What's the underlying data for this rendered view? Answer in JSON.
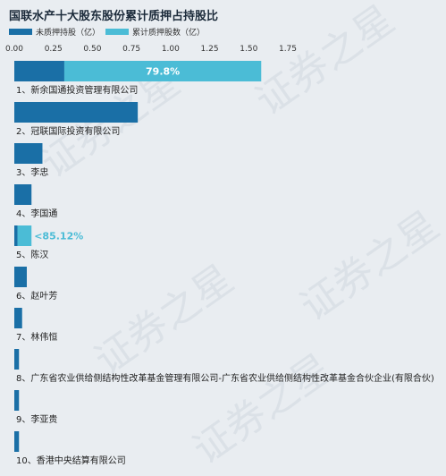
{
  "chart_data": {
    "type": "bar",
    "title": "国联水产十大股东股份累计质押占持股比",
    "legend": [
      {
        "name": "未质押持股（亿）",
        "color": "#1a6fa6"
      },
      {
        "name": "累计质押股数（亿）",
        "color": "#4bbcd6"
      }
    ],
    "x_ticks": [
      "0.00",
      "0.25",
      "0.50",
      "0.75",
      "1.00",
      "1.25",
      "1.50",
      "1.75"
    ],
    "xlim": [
      0,
      1.75
    ],
    "categories": [
      "1、新余国通投资管理有限公司",
      "2、冠联国际投资有限公司",
      "3、李忠",
      "4、李国通",
      "5、陈汉",
      "6、赵叶芳",
      "7、林伟恒",
      "8、广东省农业供给侧结构性改革基金管理有限公司-广东省农业供给侧结构性改革基金合伙企业(有限合伙)",
      "9、李亚贵",
      "10、香港中央结算有限公司"
    ],
    "series": [
      {
        "name": "未质押持股（亿）",
        "values": [
          0.32,
          0.79,
          0.18,
          0.11,
          0.02,
          0.08,
          0.05,
          0.03,
          0.03,
          0.03
        ]
      },
      {
        "name": "累计质押股数（亿）",
        "values": [
          1.26,
          0,
          0,
          0,
          0.09,
          0,
          0,
          0,
          0,
          0
        ]
      }
    ],
    "data_labels": [
      {
        "category_index": 0,
        "text": "79.8%",
        "color": "#ffffff"
      },
      {
        "category_index": 4,
        "text": "85.12%",
        "color": "#4bbcd6"
      }
    ],
    "watermark": "证券之星"
  }
}
